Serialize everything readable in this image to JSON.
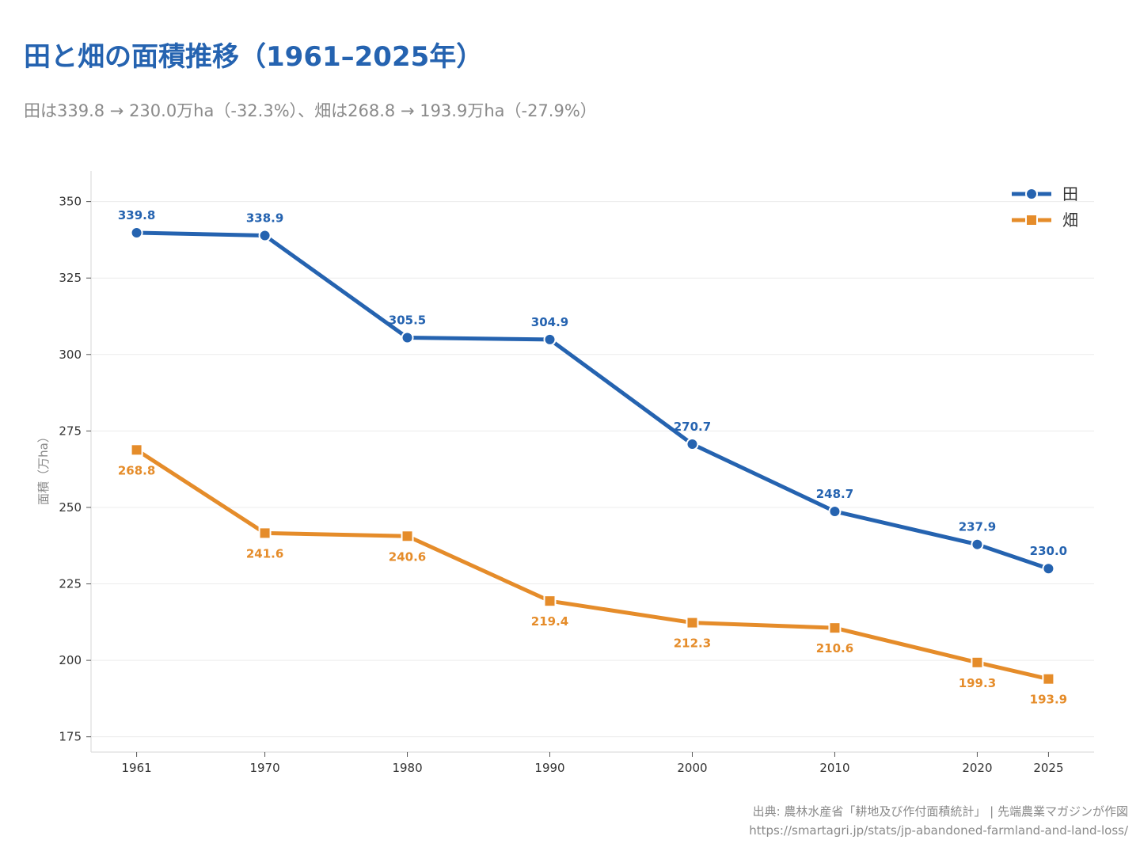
{
  "header": {
    "title": "田と畑の面積推移（1961–2025年）",
    "subtitle": "田は339.8 → 230.0万ha（-32.3%）、畑は268.8 → 193.9万ha（-27.9%）"
  },
  "footer": {
    "source": "出典: 農林水産省「耕地及び作付面積統計」 | 先端農業マガジンが作図",
    "url": "https://smartagri.jp/stats/jp-abandoned-farmland-and-land-loss/"
  },
  "colors": {
    "paddy": "#2563b0",
    "upland": "#e58c2a",
    "title": "#2563b0",
    "grid": "#ececec",
    "axis": "#dddddd"
  },
  "chart_data": {
    "type": "line",
    "title": "田と畑の面積推移（1961–2025年）",
    "xlabel": "",
    "ylabel": "面積（万ha）",
    "x": [
      1961,
      1970,
      1980,
      1990,
      2000,
      2010,
      2020,
      2025
    ],
    "xlim": [
      1957.8,
      2028.2
    ],
    "ylim": [
      170,
      360
    ],
    "yticks": [
      175,
      200,
      225,
      250,
      275,
      300,
      325,
      350
    ],
    "grid": "horizontal",
    "legend_position": "top-right",
    "series": [
      {
        "name": "田",
        "marker": "circle",
        "color": "#2563b0",
        "label_position": "above",
        "values": [
          339.8,
          338.9,
          305.5,
          304.9,
          270.7,
          248.7,
          237.9,
          230.0
        ],
        "labels": [
          "339.8",
          "338.9",
          "305.5",
          "304.9",
          "270.7",
          "248.7",
          "237.9",
          "230.0"
        ]
      },
      {
        "name": "畑",
        "marker": "square",
        "color": "#e58c2a",
        "label_position": "below",
        "values": [
          268.8,
          241.6,
          240.6,
          219.4,
          212.3,
          210.6,
          199.3,
          193.9
        ],
        "labels": [
          "268.8",
          "241.6",
          "240.6",
          "219.4",
          "212.3",
          "210.6",
          "199.3",
          "193.9"
        ]
      }
    ]
  }
}
